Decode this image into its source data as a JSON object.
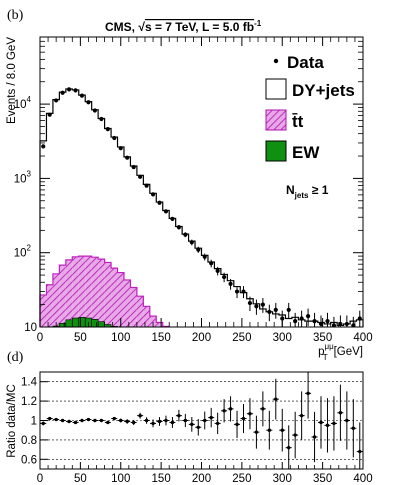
{
  "panel_labels": {
    "top": "(b)",
    "bottom": "(d)"
  },
  "colors": {
    "dy": "#000000",
    "ttbar": "#c020c0",
    "ttbar_fill": "#e6a6e6",
    "ew": "#109010",
    "data": "#000000",
    "frame": "#000000",
    "grid": "#000000"
  },
  "chart_data": [
    {
      "type": "histogram",
      "title": "CMS, √s = 7 TeV, L = 5.0 fb⁻¹",
      "title_parts": {
        "experiment": "CMS, ",
        "sqrt_symbol": "√",
        "energy": "s = 7 TeV, L = 5.0 fb",
        "lumi_exp": "-1"
      },
      "xlabel": "p_T^{μμ} [GeV]",
      "xlabel_parts": {
        "p": "p",
        "sub": "T",
        "sup": "μμ",
        "unit": "[GeV]"
      },
      "ylabel": "Events / 8.0 GeV",
      "yscale": "log",
      "xlim": [
        0,
        400
      ],
      "ylim": [
        10,
        80000
      ],
      "xticks": [
        "0",
        "50",
        "100",
        "150",
        "200",
        "250",
        "300",
        "350",
        "400"
      ],
      "yticks": [
        {
          "value": 10,
          "base": "10",
          "exp": ""
        },
        {
          "value": 100,
          "base": "10",
          "exp": "2"
        },
        {
          "value": 1000,
          "base": "10",
          "exp": "3"
        },
        {
          "value": 10000,
          "base": "10",
          "exp": "4"
        }
      ],
      "bin_width": 8,
      "annotation": {
        "text": "N",
        "sub": "jets",
        "rest": " ≥ 1"
      },
      "legend": [
        {
          "name": "Data",
          "marker": "dot"
        },
        {
          "name": "DY+jets",
          "marker": "box"
        },
        {
          "name": "t̄t",
          "marker": "hatch"
        },
        {
          "name": "EW",
          "marker": "green"
        }
      ],
      "legend_position": "top-right",
      "series": [
        {
          "name": "DY+jets",
          "kind": "stack-total",
          "values": [
            3200,
            7500,
            11500,
            14500,
            16000,
            15500,
            13200,
            10800,
            8400,
            6400,
            4700,
            3600,
            2650,
            1950,
            1470,
            1100,
            830,
            630,
            480,
            370,
            290,
            225,
            178,
            143,
            115,
            92,
            75,
            61,
            51,
            42,
            35,
            29,
            24,
            20.5,
            17.5,
            16,
            15,
            14.5,
            13,
            13.5,
            12.5,
            12,
            12,
            11.5,
            11,
            11.5,
            10.5,
            11,
            12,
            12.5
          ]
        },
        {
          "name": "t̄t",
          "kind": "stack",
          "values": [
            27,
            37,
            52,
            68,
            80,
            88,
            90,
            90,
            87,
            82,
            74,
            62,
            54,
            43,
            34,
            26,
            19,
            14,
            11.5,
            10.2
          ]
        },
        {
          "name": "EW",
          "kind": "stack",
          "values": [
            0,
            0,
            10.3,
            11.2,
            12.5,
            13.2,
            13.5,
            13.2,
            12.7,
            11.8,
            10.8,
            10.2
          ]
        },
        {
          "name": "Data",
          "kind": "points",
          "values": [
            2700,
            7200,
            11200,
            14200,
            15800,
            15300,
            13000,
            10600,
            8200,
            6300,
            4600,
            3500,
            2550,
            1900,
            1420,
            1050,
            800,
            610,
            470,
            360,
            285,
            220,
            175,
            138,
            110,
            88,
            72,
            57,
            47,
            38,
            30,
            30,
            21,
            19,
            20,
            16,
            17,
            13,
            17,
            12,
            13,
            14,
            12,
            11,
            12,
            10.5,
            11,
            11,
            10.5,
            13
          ],
          "errors": [
            52,
            85,
            106,
            119,
            126,
            124,
            114,
            103,
            91,
            79,
            68,
            59,
            50,
            44,
            38,
            32,
            28,
            25,
            22,
            19,
            17,
            15,
            13,
            12,
            10.5,
            9.4,
            8.5,
            7.5,
            6.9,
            6.2,
            5.5,
            5.5,
            4.6,
            4.4,
            4.5,
            4,
            4.1,
            3.6,
            4.1,
            3.5,
            3.6,
            3.7,
            3.5,
            3.3,
            3.5,
            3.2,
            3.3,
            3.3,
            3.2,
            3.6
          ]
        }
      ]
    },
    {
      "type": "scatter",
      "ylabel": "Ratio data/MC",
      "xlim": [
        0,
        400
      ],
      "ylim": [
        0.5,
        1.5
      ],
      "xticks": [
        "0",
        "50",
        "100",
        "150",
        "200",
        "250",
        "300",
        "350",
        "400"
      ],
      "yticks": [
        "0.6",
        "0.8",
        "1",
        "1.2",
        "1.4"
      ],
      "grid": "horizontal dashed",
      "series": [
        {
          "name": "Ratio data/MC",
          "x": [
            4,
            12,
            20,
            28,
            36,
            44,
            52,
            60,
            68,
            76,
            84,
            92,
            100,
            108,
            116,
            124,
            132,
            140,
            148,
            156,
            164,
            172,
            180,
            188,
            196,
            204,
            212,
            220,
            228,
            236,
            244,
            252,
            260,
            268,
            276,
            284,
            292,
            300,
            308,
            316,
            324,
            332,
            340,
            348,
            356,
            364,
            372,
            380,
            388,
            396
          ],
          "y": [
            0.97,
            1.02,
            1.01,
            1.0,
            0.99,
            0.98,
            1.0,
            1.01,
            1.0,
            1.0,
            0.98,
            1.02,
            1.0,
            0.99,
            0.98,
            1.05,
            1.0,
            0.97,
            0.99,
            1.0,
            0.98,
            1.05,
            1.0,
            0.96,
            0.93,
            1.0,
            1.03,
            0.97,
            1.1,
            1.12,
            0.96,
            1.02,
            1.07,
            0.88,
            1.12,
            0.9,
            1.22,
            0.9,
            0.72,
            0.85,
            1.05,
            1.28,
            0.83,
            0.98,
            0.95,
            0.97,
            1.08,
            1.0,
            0.92,
            0.68
          ],
          "errors": [
            0.02,
            0.012,
            0.01,
            0.009,
            0.008,
            0.008,
            0.009,
            0.01,
            0.011,
            0.012,
            0.014,
            0.016,
            0.019,
            0.023,
            0.026,
            0.03,
            0.034,
            0.04,
            0.045,
            0.05,
            0.056,
            0.06,
            0.068,
            0.076,
            0.085,
            0.092,
            0.1,
            0.11,
            0.12,
            0.13,
            0.14,
            0.15,
            0.16,
            0.17,
            0.18,
            0.2,
            0.21,
            0.22,
            0.23,
            0.24,
            0.25,
            0.26,
            0.26,
            0.27,
            0.28,
            0.28,
            0.29,
            0.3,
            0.3,
            0.3
          ]
        }
      ]
    }
  ]
}
